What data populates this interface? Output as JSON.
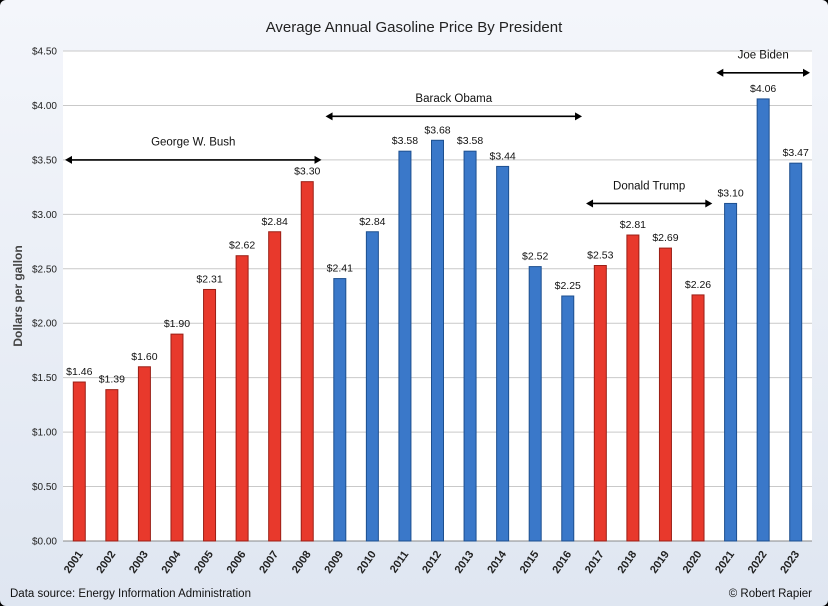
{
  "chart_data": {
    "type": "bar",
    "title": "Average Annual Gasoline Price By President",
    "ylabel": "Dollars per gallon",
    "xlabel": "",
    "ylim": [
      0,
      4.5
    ],
    "yticks": [
      "$0.00",
      "$0.50",
      "$1.00",
      "$1.50",
      "$2.00",
      "$2.50",
      "$3.00",
      "$3.50",
      "$4.00",
      "$4.50"
    ],
    "ytick_values": [
      0,
      0.5,
      1.0,
      1.5,
      2.0,
      2.5,
      3.0,
      3.5,
      4.0,
      4.5
    ],
    "grid": true,
    "categories": [
      "2001",
      "2002",
      "2003",
      "2004",
      "2005",
      "2006",
      "2007",
      "2008",
      "2009",
      "2010",
      "2011",
      "2012",
      "2013",
      "2014",
      "2015",
      "2016",
      "2017",
      "2018",
      "2019",
      "2020",
      "2021",
      "2022",
      "2023"
    ],
    "values": [
      1.46,
      1.39,
      1.6,
      1.9,
      2.31,
      2.62,
      2.84,
      3.3,
      2.41,
      2.84,
      3.58,
      3.68,
      3.58,
      3.44,
      2.52,
      2.25,
      2.53,
      2.81,
      2.69,
      2.26,
      3.1,
      4.06,
      3.47
    ],
    "labels": [
      "$1.46",
      "$1.39",
      "$1.60",
      "$1.90",
      "$2.31",
      "$2.62",
      "$2.84",
      "$3.30",
      "$2.41",
      "$2.84",
      "$3.58",
      "$3.68",
      "$3.58",
      "$3.44",
      "$2.52",
      "$2.25",
      "$2.53",
      "$2.81",
      "$2.69",
      "$2.26",
      "$3.10",
      "$4.06",
      "$3.47"
    ],
    "bar_party": [
      "R",
      "R",
      "R",
      "R",
      "R",
      "R",
      "R",
      "R",
      "D",
      "D",
      "D",
      "D",
      "D",
      "D",
      "D",
      "D",
      "R",
      "R",
      "R",
      "R",
      "D",
      "D",
      "D"
    ],
    "colors": {
      "R": "#e8392c",
      "D": "#3a78c9",
      "R_edge": "#9a1f16",
      "D_edge": "#1d4f8f"
    },
    "annotations": [
      {
        "text": "George W. Bush",
        "from_year": "2001",
        "to_year": "2008",
        "y": 3.5,
        "label_y": 3.63
      },
      {
        "text": "Barack Obama",
        "from_year": "2009",
        "to_year": "2016",
        "y": 3.9,
        "label_y": 4.03
      },
      {
        "text": "Donald Trump",
        "from_year": "2017",
        "to_year": "2020",
        "y": 3.1,
        "label_y": 3.23
      },
      {
        "text": "Joe Biden",
        "from_year": "2021",
        "to_year": "2023",
        "y": 4.3,
        "label_y": 4.43
      }
    ]
  },
  "footer": {
    "source": "Data source: Energy Information Administration",
    "credit": "© Robert Rapier"
  }
}
